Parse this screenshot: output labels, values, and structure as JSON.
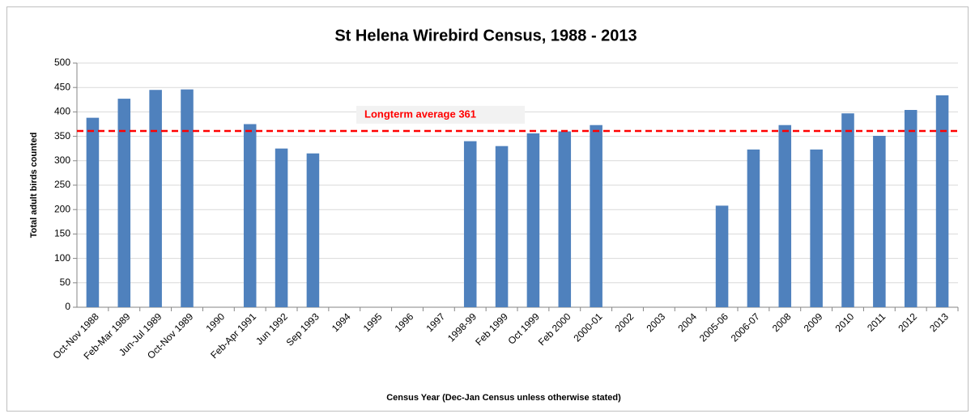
{
  "chart_data": {
    "type": "bar",
    "title": "St Helena Wirebird Census, 1988 - 2013",
    "x_label": "Census Year (Dec-Jan Census unless otherwise stated)",
    "y_label": "Total adult birds counted",
    "categories": [
      "Oct-Nov 1988",
      "Feb-Mar 1989",
      "Jun-Jul 1989",
      "Oct-Nov 1989",
      "1990",
      "Feb-Apr 1991",
      "Jun 1992",
      "Sep 1993",
      "1994",
      "1995",
      "1996",
      "1997",
      "1998-99",
      "Feb 1999",
      "Oct 1999",
      "Feb 2000",
      "2000-01",
      "2002",
      "2003",
      "2004",
      "2005-06",
      "2006-07",
      "2008",
      "2009",
      "2010",
      "2011",
      "2012",
      "2013"
    ],
    "values": [
      388,
      427,
      445,
      446,
      null,
      375,
      325,
      315,
      null,
      null,
      null,
      null,
      340,
      330,
      356,
      360,
      373,
      null,
      null,
      null,
      208,
      323,
      373,
      323,
      397,
      351,
      404,
      434
    ],
    "color": "#4f81bd",
    "average": 361,
    "average_color": "#ff0000",
    "annotation": "Longterm average 361",
    "ylim": [
      0,
      500
    ],
    "yticks": [
      0,
      50,
      100,
      150,
      200,
      250,
      300,
      350,
      400,
      450,
      500
    ],
    "grid": true
  }
}
